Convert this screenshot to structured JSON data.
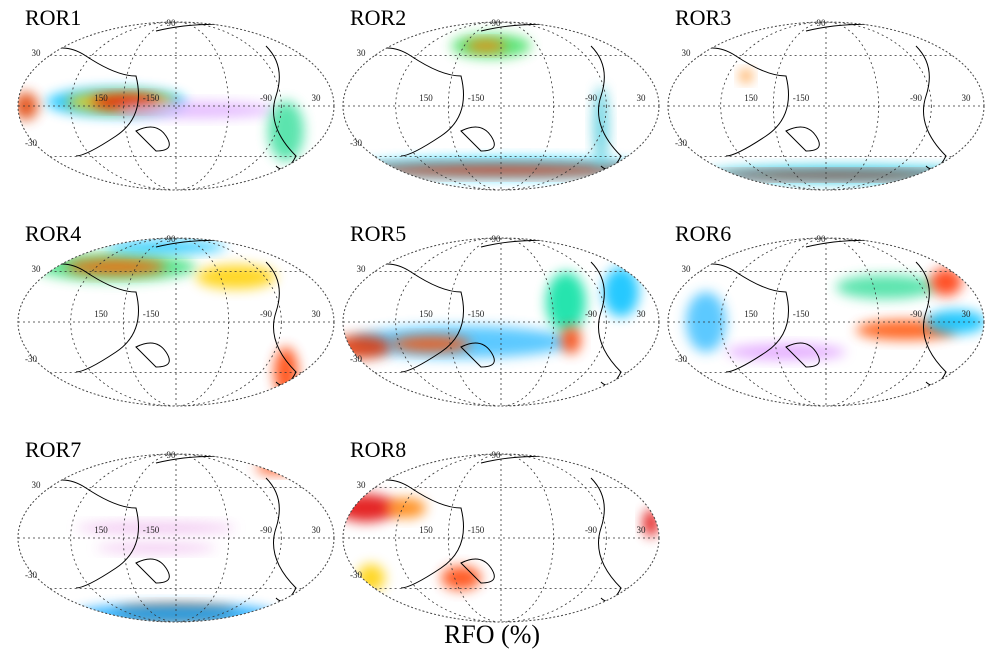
{
  "panels": [
    {
      "label": "ROR1"
    },
    {
      "label": "ROR2"
    },
    {
      "label": "ROR3"
    },
    {
      "label": "ROR4"
    },
    {
      "label": "ROR5"
    },
    {
      "label": "ROR6"
    },
    {
      "label": "ROR7"
    },
    {
      "label": "ROR8"
    }
  ],
  "graticule_labels": [
    "90",
    "30",
    "-30",
    "-90",
    "150",
    "-150",
    "30"
  ],
  "caption": "RFO (%)"
}
